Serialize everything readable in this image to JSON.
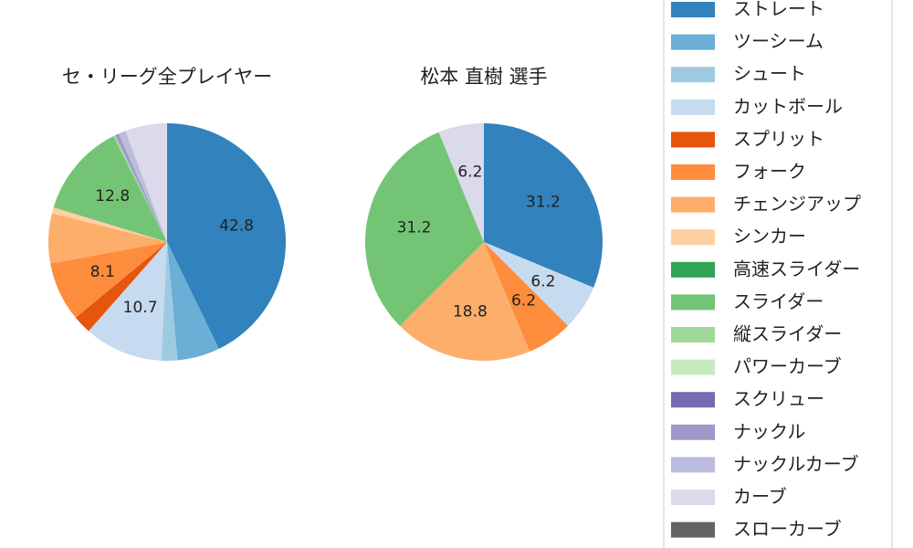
{
  "chart_data": [
    {
      "type": "pie",
      "title": "セ・リーグ全プレイヤー",
      "categories": [
        "ストレート",
        "ツーシーム",
        "シュート",
        "カットボール",
        "スプリット",
        "フォーク",
        "チェンジアップ",
        "シンカー",
        "高速スライダー",
        "スライダー",
        "縦スライダー",
        "パワーカーブ",
        "スクリュー",
        "ナックル",
        "ナックルカーブ",
        "カーブ",
        "スローカーブ"
      ],
      "values": [
        42.8,
        5.8,
        2.2,
        10.7,
        2.5,
        8.1,
        6.8,
        0.8,
        0,
        12.8,
        0.3,
        0,
        0,
        0.5,
        1.0,
        5.7,
        0
      ],
      "value_labels": [
        "42.8",
        null,
        null,
        "10.7",
        null,
        "8.1",
        null,
        null,
        null,
        "12.8",
        null,
        null,
        null,
        null,
        null,
        null,
        null
      ],
      "colors": [
        "#3182bd",
        "#6baed6",
        "#9ecae1",
        "#c6dbef",
        "#e6550d",
        "#fd8d3c",
        "#fdae6b",
        "#fdd0a2",
        "#31a354",
        "#74c476",
        "#a1d99b",
        "#c7e9c0",
        "#756bb1",
        "#9e9ac8",
        "#bcbddc",
        "#dadaeb",
        "#636363"
      ]
    },
    {
      "type": "pie",
      "title": "松本 直樹  選手",
      "categories": [
        "ストレート",
        "ツーシーム",
        "シュート",
        "カットボール",
        "スプリット",
        "フォーク",
        "チェンジアップ",
        "シンカー",
        "高速スライダー",
        "スライダー",
        "縦スライダー",
        "パワーカーブ",
        "スクリュー",
        "ナックル",
        "ナックルカーブ",
        "カーブ",
        "スローカーブ"
      ],
      "values": [
        31.2,
        0,
        0,
        6.2,
        0,
        6.2,
        18.8,
        0,
        0,
        31.2,
        0,
        0,
        0,
        0,
        0,
        6.2,
        0
      ],
      "value_labels": [
        "31.2",
        null,
        null,
        "6.2",
        null,
        "6.2",
        "18.8",
        null,
        null,
        "31.2",
        null,
        null,
        null,
        null,
        null,
        "6.2",
        null
      ],
      "colors": [
        "#3182bd",
        "#6baed6",
        "#9ecae1",
        "#c6dbef",
        "#e6550d",
        "#fd8d3c",
        "#fdae6b",
        "#fdd0a2",
        "#31a354",
        "#74c476",
        "#a1d99b",
        "#c7e9c0",
        "#756bb1",
        "#9e9ac8",
        "#bcbddc",
        "#dadaeb",
        "#636363"
      ],
      "legend": "right"
    }
  ]
}
